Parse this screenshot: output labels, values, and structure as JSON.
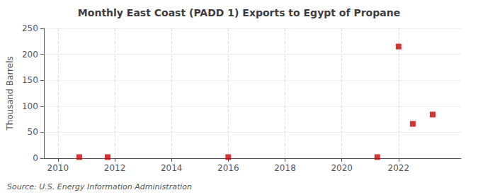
{
  "chart_data": {
    "type": "scatter",
    "title": "Monthly East Coast (PADD 1) Exports to Egypt of Propane",
    "ylabel": "Thousand Barrels",
    "annotations": [
      "Source: U.S. Energy Information Administration"
    ],
    "x": [
      2010.75,
      2011.75,
      2016.0,
      2021.25,
      2022.0,
      2022.5,
      2023.2
    ],
    "values": [
      2,
      2,
      2,
      2,
      215,
      66,
      84
    ],
    "color": "#cc0000",
    "marker": "square",
    "xlim": [
      2009.5,
      2024.2
    ],
    "ylim": [
      0,
      250
    ],
    "xticks": [
      2010,
      2012,
      2014,
      2016,
      2018,
      2020,
      2022
    ],
    "yticks": [
      0,
      50,
      100,
      150,
      200,
      250
    ],
    "grid": true
  }
}
